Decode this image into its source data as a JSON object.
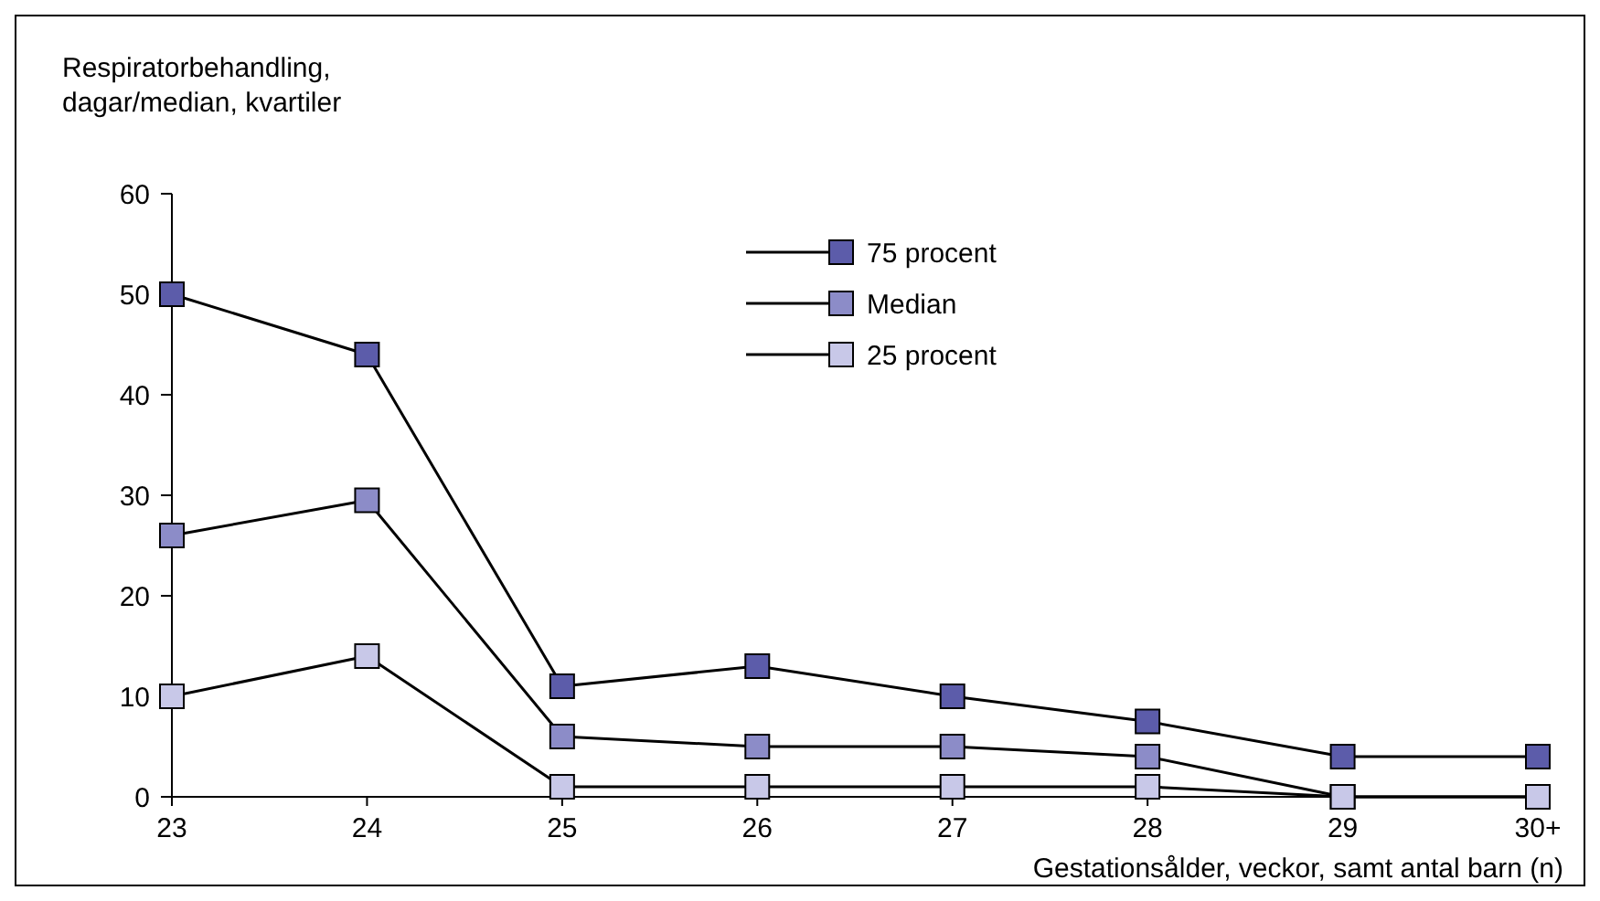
{
  "chart_data": {
    "type": "line",
    "ylabel": "Respiratorbehandling,\ndagar/median, kvartiler",
    "xlabel": "Gestationsålder, veckor, samt antal barn (n)",
    "categories": [
      "23",
      "24",
      "25",
      "26",
      "27",
      "28",
      "29",
      "30+"
    ],
    "ylim": [
      0,
      60
    ],
    "yticks": [
      0,
      10,
      20,
      30,
      40,
      50,
      60
    ],
    "marker": "square",
    "legend": "top right",
    "grid": false,
    "series": [
      {
        "name": "75 procent",
        "color": "#5c5caa",
        "values": [
          50,
          44,
          11,
          13,
          10,
          7.5,
          4,
          4
        ]
      },
      {
        "name": "Median",
        "color": "#8c8cc8",
        "values": [
          26,
          29.5,
          6,
          5,
          5,
          4,
          0,
          0
        ]
      },
      {
        "name": "25 procent",
        "color": "#c8c8e8",
        "values": [
          10,
          14,
          1,
          1,
          1,
          1,
          0,
          0
        ]
      }
    ]
  }
}
